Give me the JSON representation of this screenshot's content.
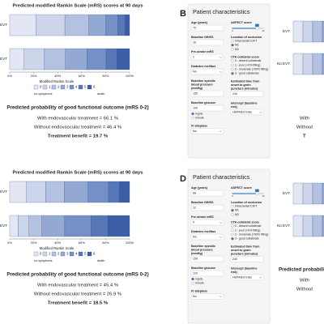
{
  "chart_data": [
    {
      "type": "bar",
      "stacked": true,
      "orientation": "horizontal",
      "title": "Predicted modified Rankin Scale (mRS) scores at 90 days",
      "categories": [
        "EVT",
        "No EVT"
      ],
      "series": [
        {
          "name": "0",
          "color": "#e3e7f3",
          "values": [
            22,
            12
          ]
        },
        {
          "name": "1",
          "color": "#cdd5ea",
          "values": [
            24,
            17
          ]
        },
        {
          "name": "2",
          "color": "#b4c1e0",
          "values": [
            20.1,
            17.4
          ]
        },
        {
          "name": "3",
          "color": "#93a8d3",
          "values": [
            14,
            18
          ]
        },
        {
          "name": "4",
          "color": "#7590c6",
          "values": [
            10,
            16
          ]
        },
        {
          "name": "5",
          "color": "#5877b6",
          "values": [
            6,
            9
          ]
        },
        {
          "name": "6",
          "color": "#3c5ea4",
          "values": [
            3.9,
            10.6
          ]
        }
      ],
      "xlim": [
        0,
        100
      ],
      "xticks": [
        {
          "value": 0,
          "label": "0%"
        },
        {
          "value": 20,
          "label": "20%"
        },
        {
          "value": 40,
          "label": "40%"
        },
        {
          "value": 60,
          "label": "60%"
        },
        {
          "value": 80,
          "label": "80%"
        },
        {
          "value": 100,
          "label": "100%"
        }
      ],
      "legend_title": "Modified Rankin Scale",
      "legend_ends": [
        "no symptoms",
        "death"
      ]
    },
    {
      "type": "bar",
      "stacked": true,
      "orientation": "horizontal",
      "title": "Predicted modified Rankin Scale (mRS) scores at 90 days",
      "categories": [
        "EVT",
        "No EVT"
      ],
      "series": [
        {
          "name": "0",
          "color": "#e3e7f3",
          "values": [
            14,
            7
          ]
        },
        {
          "name": "1",
          "color": "#cdd5ea",
          "values": [
            16,
            9
          ]
        },
        {
          "name": "2",
          "color": "#b4c1e0",
          "values": [
            15.4,
            10.9
          ]
        },
        {
          "name": "3",
          "color": "#93a8d3",
          "values": [
            20,
            19
          ]
        },
        {
          "name": "4",
          "color": "#7590c6",
          "values": [
            17,
            22
          ]
        },
        {
          "name": "5",
          "color": "#5877b6",
          "values": [
            9,
            14
          ]
        },
        {
          "name": "6",
          "color": "#3c5ea4",
          "values": [
            8.6,
            18.1
          ]
        }
      ],
      "xlim": [
        0,
        100
      ],
      "xticks": [
        {
          "value": 0,
          "label": "0%"
        },
        {
          "value": 20,
          "label": "20%"
        },
        {
          "value": 40,
          "label": "40%"
        },
        {
          "value": 60,
          "label": "60%"
        },
        {
          "value": 80,
          "label": "80%"
        },
        {
          "value": 100,
          "label": "100%"
        }
      ],
      "legend_title": "Modified Rankin Scale",
      "legend_ends": [
        "no symptoms",
        "death"
      ]
    }
  ],
  "outcomes": [
    {
      "title": "Predicted probability of good functional outcome (mRS 0-2)",
      "with": "With endovascular treatment = 66.1 %",
      "without": "Without endovascular treatment = 46.4 %",
      "benefit": "Treatment benefit = 19.7 %"
    },
    {
      "title": "Predicted probability of good functional outcome (mRS 0-2)",
      "with": "With endovascular treatment = 45.4 %",
      "without": "Without endovascular treatment = 26.9 %",
      "benefit": "Treatment benefit = 18.5 %"
    }
  ],
  "forms": [
    {
      "label": "B",
      "title": "Patient characteristics",
      "left": [
        {
          "kind": "input",
          "lines": [
            "Age (years)"
          ],
          "value": "75"
        },
        {
          "kind": "input",
          "lines": [
            "Baseline NIHSS"
          ],
          "value": "16"
        },
        {
          "kind": "select",
          "lines": [
            "Pre-stroke mRS"
          ],
          "value": "1"
        },
        {
          "kind": "select",
          "lines": [
            "Diabetes mellitus"
          ],
          "value": "No"
        },
        {
          "kind": "input",
          "lines": [
            "Baseline systolic",
            "blood pressure",
            "(mmHg)"
          ],
          "value": "150"
        },
        {
          "kind": "input-radio",
          "lines": [
            "Baseline glucose"
          ],
          "value": "100",
          "options": [
            "mg/dL",
            "mmol/L"
          ],
          "selected": 0
        },
        {
          "kind": "select",
          "lines": [
            "IV alteplase"
          ],
          "value": "No"
        }
      ],
      "right": [
        {
          "kind": "slider",
          "lines": [
            "ASPECT score"
          ],
          "value": 8,
          "min": 0,
          "max": 10
        },
        {
          "kind": "radio",
          "lines": [
            "Location of occlusion"
          ],
          "options": [
            "Intracranial ICA/T",
            "M1",
            "M2"
          ],
          "selected": 1
        },
        {
          "kind": "radio",
          "lines": [
            "CTA collateral score"
          ],
          "options": [
            "0 - absent collaterals",
            "1 - poor (>0% filling)",
            "2 - moderate (>50% filling)",
            "3 - good collaterals"
          ],
          "selected": 3
        },
        {
          "kind": "input",
          "lines": [
            "Estimated time from",
            "onset to groin",
            "puncture (minutes)"
          ],
          "value": "240"
        },
        {
          "kind": "select",
          "lines": [
            "Intercept (baseline",
            "risk)"
          ],
          "value": "HERMES trials"
        }
      ]
    },
    {
      "label": "D",
      "title": "Patient characteristics",
      "left": [
        {
          "kind": "input",
          "lines": [
            "Age (years)"
          ],
          "value": "68"
        },
        {
          "kind": "input",
          "lines": [
            "Baseline NIHSS"
          ],
          "value": "12"
        },
        {
          "kind": "select",
          "lines": [
            "Pre-stroke mRS"
          ],
          "value": "0"
        },
        {
          "kind": "select",
          "lines": [
            "Diabetes mellitus"
          ],
          "value": "No"
        },
        {
          "kind": "input",
          "lines": [
            "Baseline systolic",
            "blood pressure",
            "(mmHg)"
          ],
          "value": "150"
        },
        {
          "kind": "input-radio",
          "lines": [
            "Baseline glucose"
          ],
          "value": "120",
          "options": [
            "mg/dL",
            "mmol/L"
          ],
          "selected": 0
        },
        {
          "kind": "select",
          "lines": [
            "IV alteplase"
          ],
          "value": "No"
        }
      ],
      "right": [
        {
          "kind": "slider",
          "lines": [
            "ASPECT score"
          ],
          "value": 8,
          "min": 0,
          "max": 10
        },
        {
          "kind": "radio",
          "lines": [
            "Location of occlusion"
          ],
          "options": [
            "Intracranial ICA/T",
            "M1",
            "M2"
          ],
          "selected": 1
        },
        {
          "kind": "radio",
          "lines": [
            "CTA collateral score"
          ],
          "options": [
            "0 - absent collaterals",
            "1 - poor (>0% filling)",
            "2 - moderate (>50% filling)",
            "3 - good collaterals"
          ],
          "selected": 3
        },
        {
          "kind": "input",
          "lines": [
            "Estimated time from",
            "onset to groin",
            "puncture (minutes)"
          ],
          "value": "240"
        },
        {
          "kind": "select",
          "lines": [
            "Intercept (baseline",
            "risk)"
          ],
          "value": "HERMES trials"
        }
      ]
    }
  ],
  "partials": [
    {
      "bar_labels": [
        "EVT",
        "No EVT"
      ],
      "with": "With",
      "without": "Without",
      "benefit": "T"
    },
    {
      "bar_labels": [
        "EVT",
        "No EVT"
      ],
      "title": "Predicted probabilit",
      "with": "With",
      "without": "Without"
    }
  ]
}
